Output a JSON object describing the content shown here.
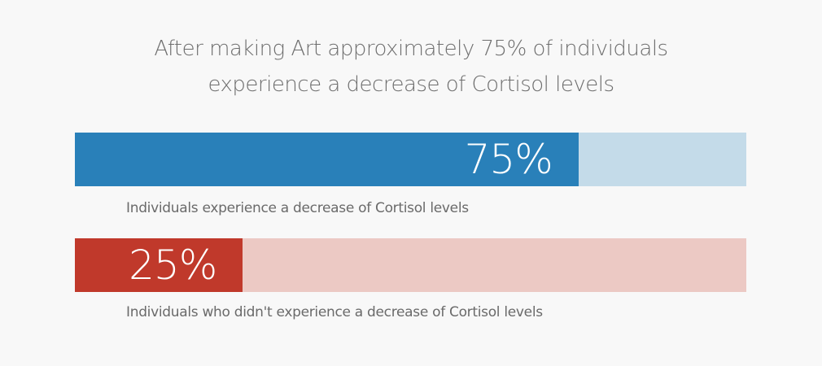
{
  "chart_data": {
    "type": "bar",
    "title": "After making Art approximately 75% of individuals experience a decrease of Cortisol levels",
    "title_lines": [
      "After making Art approximately 75% of individuals",
      "experience a decrease of Cortisol levels"
    ],
    "xlim": [
      0,
      100
    ],
    "grid": false,
    "bars": [
      {
        "value": 75,
        "value_label": "75%",
        "label": "Individuals experience a decrease of Cortisol levels",
        "color": "#2980b9",
        "track_color": "#c4dbe9"
      },
      {
        "value": 25,
        "value_label": "25%",
        "label": "Individuals who didn't experience a decrease of Cortisol levels",
        "color": "#c0392b",
        "track_color": "#ecc9c4"
      }
    ]
  }
}
